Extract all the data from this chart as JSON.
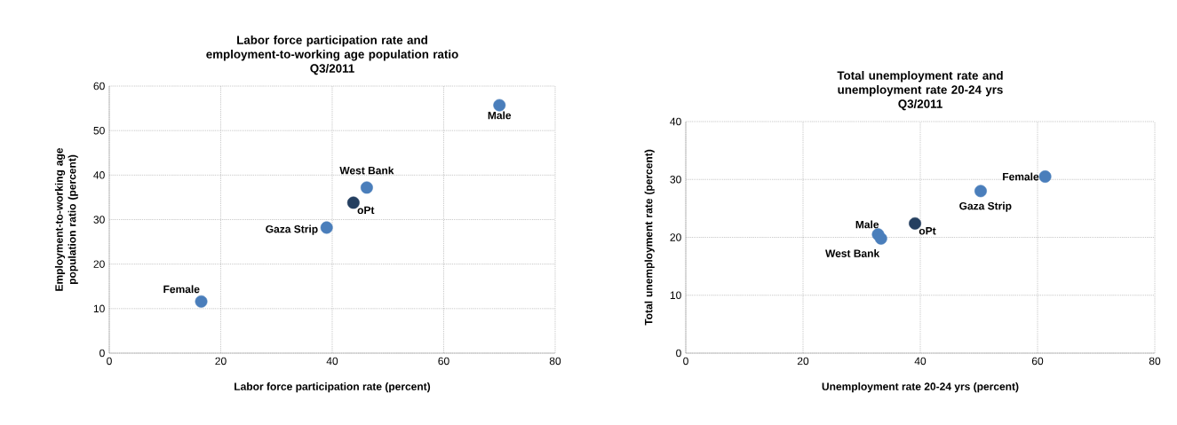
{
  "chart_data": [
    {
      "type": "scatter",
      "title": "Labor force participation rate and employment-to-working age population ratio",
      "subtitle": "Q3/2011",
      "xlabel": "Labor force participation rate (percent)",
      "ylabel": "Employment-to-working age population ratio (percent)",
      "xlim": [
        0,
        80
      ],
      "ylim": [
        0,
        60
      ],
      "xticks": [
        0,
        20,
        40,
        60,
        80
      ],
      "yticks": [
        0,
        10,
        20,
        30,
        40,
        50,
        60
      ],
      "grid": true,
      "series": [
        {
          "name": "Male",
          "color": "#4a7ebb",
          "x": [
            70
          ],
          "values": [
            55.7
          ]
        },
        {
          "name": "West Bank",
          "color": "#4a7ebb",
          "x": [
            46.2
          ],
          "values": [
            37.2
          ]
        },
        {
          "name": "oPt",
          "color": "#243f60",
          "x": [
            43.8
          ],
          "values": [
            33.8
          ]
        },
        {
          "name": "Gaza Strip",
          "color": "#4a7ebb",
          "x": [
            39
          ],
          "values": [
            28.2
          ]
        },
        {
          "name": "Female",
          "color": "#4a7ebb",
          "x": [
            16.5
          ],
          "values": [
            11.6
          ]
        }
      ]
    },
    {
      "type": "scatter",
      "title": "Total unemployment rate and unemployment rate 20-24 yrs",
      "subtitle": "Q3/2011",
      "xlabel": "Unemployment rate 20-24 yrs (percent)",
      "ylabel": "Total unemployment rate (percent)",
      "xlim": [
        0,
        80
      ],
      "ylim": [
        0,
        40
      ],
      "xticks": [
        0,
        20,
        40,
        60,
        80
      ],
      "yticks": [
        0,
        10,
        20,
        30,
        40
      ],
      "grid": true,
      "series": [
        {
          "name": "Female",
          "color": "#4a7ebb",
          "x": [
            61.3
          ],
          "values": [
            30.5
          ]
        },
        {
          "name": "Gaza Strip",
          "color": "#4a7ebb",
          "x": [
            50.3
          ],
          "values": [
            28
          ]
        },
        {
          "name": "Male",
          "color": "#4a7ebb",
          "x": [
            32.8
          ],
          "values": [
            20.5
          ]
        },
        {
          "name": "West Bank",
          "color": "#4a7ebb",
          "x": [
            33.3
          ],
          "values": [
            19.8
          ]
        },
        {
          "name": "oPt",
          "color": "#243f60",
          "x": [
            39.1
          ],
          "values": [
            22.4
          ]
        }
      ]
    }
  ]
}
